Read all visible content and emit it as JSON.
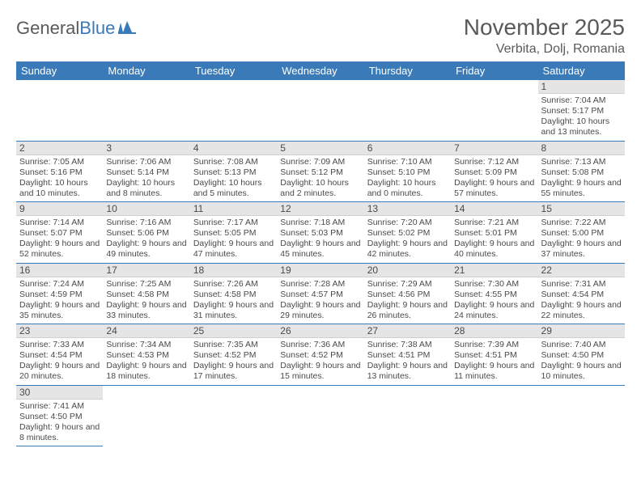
{
  "logo": {
    "text1": "General",
    "text2": "Blue"
  },
  "title": "November 2025",
  "location": "Verbita, Dolj, Romania",
  "colors": {
    "header_bg": "#3a7ab8",
    "header_fg": "#ffffff",
    "daynum_bg": "#e5e5e5",
    "text": "#4a4a4a",
    "rule": "#3a7ab8"
  },
  "weekdays": [
    "Sunday",
    "Monday",
    "Tuesday",
    "Wednesday",
    "Thursday",
    "Friday",
    "Saturday"
  ],
  "weeks": [
    [
      null,
      null,
      null,
      null,
      null,
      null,
      {
        "n": "1",
        "sr": "7:04 AM",
        "ss": "5:17 PM",
        "dl": "10 hours and 13 minutes."
      }
    ],
    [
      {
        "n": "2",
        "sr": "7:05 AM",
        "ss": "5:16 PM",
        "dl": "10 hours and 10 minutes."
      },
      {
        "n": "3",
        "sr": "7:06 AM",
        "ss": "5:14 PM",
        "dl": "10 hours and 8 minutes."
      },
      {
        "n": "4",
        "sr": "7:08 AM",
        "ss": "5:13 PM",
        "dl": "10 hours and 5 minutes."
      },
      {
        "n": "5",
        "sr": "7:09 AM",
        "ss": "5:12 PM",
        "dl": "10 hours and 2 minutes."
      },
      {
        "n": "6",
        "sr": "7:10 AM",
        "ss": "5:10 PM",
        "dl": "10 hours and 0 minutes."
      },
      {
        "n": "7",
        "sr": "7:12 AM",
        "ss": "5:09 PM",
        "dl": "9 hours and 57 minutes."
      },
      {
        "n": "8",
        "sr": "7:13 AM",
        "ss": "5:08 PM",
        "dl": "9 hours and 55 minutes."
      }
    ],
    [
      {
        "n": "9",
        "sr": "7:14 AM",
        "ss": "5:07 PM",
        "dl": "9 hours and 52 minutes."
      },
      {
        "n": "10",
        "sr": "7:16 AM",
        "ss": "5:06 PM",
        "dl": "9 hours and 49 minutes."
      },
      {
        "n": "11",
        "sr": "7:17 AM",
        "ss": "5:05 PM",
        "dl": "9 hours and 47 minutes."
      },
      {
        "n": "12",
        "sr": "7:18 AM",
        "ss": "5:03 PM",
        "dl": "9 hours and 45 minutes."
      },
      {
        "n": "13",
        "sr": "7:20 AM",
        "ss": "5:02 PM",
        "dl": "9 hours and 42 minutes."
      },
      {
        "n": "14",
        "sr": "7:21 AM",
        "ss": "5:01 PM",
        "dl": "9 hours and 40 minutes."
      },
      {
        "n": "15",
        "sr": "7:22 AM",
        "ss": "5:00 PM",
        "dl": "9 hours and 37 minutes."
      }
    ],
    [
      {
        "n": "16",
        "sr": "7:24 AM",
        "ss": "4:59 PM",
        "dl": "9 hours and 35 minutes."
      },
      {
        "n": "17",
        "sr": "7:25 AM",
        "ss": "4:58 PM",
        "dl": "9 hours and 33 minutes."
      },
      {
        "n": "18",
        "sr": "7:26 AM",
        "ss": "4:58 PM",
        "dl": "9 hours and 31 minutes."
      },
      {
        "n": "19",
        "sr": "7:28 AM",
        "ss": "4:57 PM",
        "dl": "9 hours and 29 minutes."
      },
      {
        "n": "20",
        "sr": "7:29 AM",
        "ss": "4:56 PM",
        "dl": "9 hours and 26 minutes."
      },
      {
        "n": "21",
        "sr": "7:30 AM",
        "ss": "4:55 PM",
        "dl": "9 hours and 24 minutes."
      },
      {
        "n": "22",
        "sr": "7:31 AM",
        "ss": "4:54 PM",
        "dl": "9 hours and 22 minutes."
      }
    ],
    [
      {
        "n": "23",
        "sr": "7:33 AM",
        "ss": "4:54 PM",
        "dl": "9 hours and 20 minutes."
      },
      {
        "n": "24",
        "sr": "7:34 AM",
        "ss": "4:53 PM",
        "dl": "9 hours and 18 minutes."
      },
      {
        "n": "25",
        "sr": "7:35 AM",
        "ss": "4:52 PM",
        "dl": "9 hours and 17 minutes."
      },
      {
        "n": "26",
        "sr": "7:36 AM",
        "ss": "4:52 PM",
        "dl": "9 hours and 15 minutes."
      },
      {
        "n": "27",
        "sr": "7:38 AM",
        "ss": "4:51 PM",
        "dl": "9 hours and 13 minutes."
      },
      {
        "n": "28",
        "sr": "7:39 AM",
        "ss": "4:51 PM",
        "dl": "9 hours and 11 minutes."
      },
      {
        "n": "29",
        "sr": "7:40 AM",
        "ss": "4:50 PM",
        "dl": "9 hours and 10 minutes."
      }
    ],
    [
      {
        "n": "30",
        "sr": "7:41 AM",
        "ss": "4:50 PM",
        "dl": "9 hours and 8 minutes."
      },
      null,
      null,
      null,
      null,
      null,
      null
    ]
  ],
  "labels": {
    "sunrise": "Sunrise:",
    "sunset": "Sunset:",
    "daylight": "Daylight:"
  }
}
